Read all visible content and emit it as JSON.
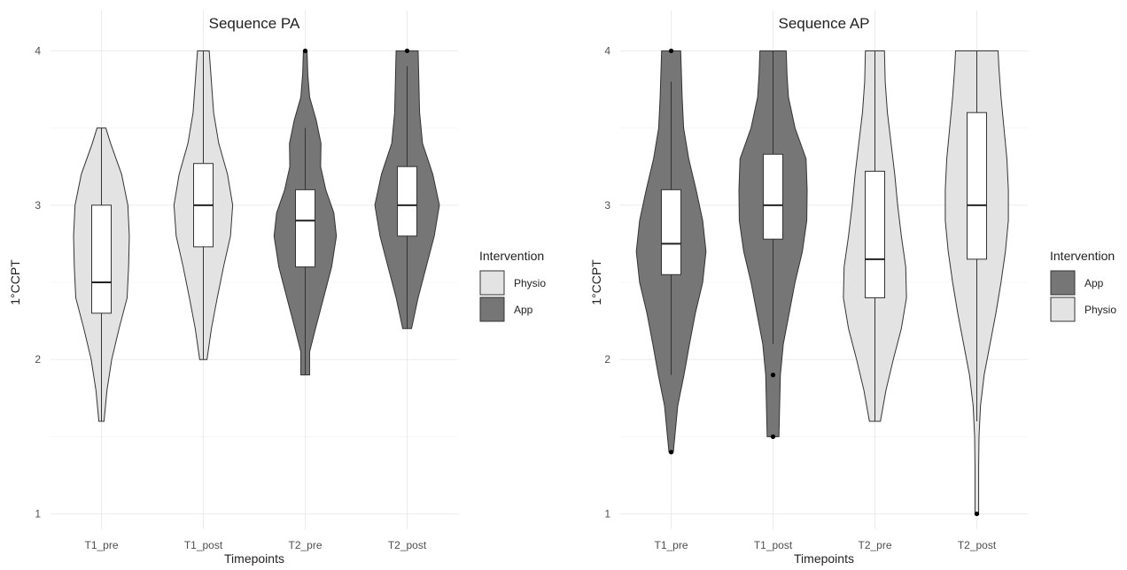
{
  "chart_data": [
    {
      "type": "violin",
      "title": "Sequence PA",
      "xlabel": "Timepoints",
      "ylabel": "1°CCPT",
      "ylim": [
        0.9,
        4.1
      ],
      "yticks": [
        1,
        2,
        3,
        4
      ],
      "grid": true,
      "legend": {
        "title": "Intervention",
        "position": "right",
        "entries": [
          {
            "name": "Physio",
            "color": "#e3e3e3"
          },
          {
            "name": "App",
            "color": "#767676"
          }
        ]
      },
      "categories": [
        "T1_pre",
        "T1_post",
        "T2_pre",
        "T2_post"
      ],
      "groups": [
        {
          "category": "T1_pre",
          "intervention": "Physio",
          "box": {
            "q1": 2.3,
            "median": 2.5,
            "q3": 3.0,
            "whisker_low": 1.6,
            "whisker_high": 3.5
          },
          "outliers": [],
          "density": [
            [
              1.6,
              0.07
            ],
            [
              1.8,
              0.15
            ],
            [
              2.0,
              0.28
            ],
            [
              2.2,
              0.48
            ],
            [
              2.4,
              0.7
            ],
            [
              2.6,
              0.74
            ],
            [
              2.8,
              0.76
            ],
            [
              3.0,
              0.72
            ],
            [
              3.2,
              0.55
            ],
            [
              3.4,
              0.25
            ],
            [
              3.5,
              0.12
            ]
          ]
        },
        {
          "category": "T1_post",
          "intervention": "Physio",
          "box": {
            "q1": 2.73,
            "median": 3.0,
            "q3": 3.27,
            "whisker_low": 2.0,
            "whisker_high": 4.0
          },
          "outliers": [],
          "density": [
            [
              2.0,
              0.1
            ],
            [
              2.2,
              0.22
            ],
            [
              2.4,
              0.38
            ],
            [
              2.6,
              0.55
            ],
            [
              2.8,
              0.74
            ],
            [
              3.0,
              0.8
            ],
            [
              3.2,
              0.66
            ],
            [
              3.4,
              0.42
            ],
            [
              3.6,
              0.28
            ],
            [
              3.8,
              0.22
            ],
            [
              4.0,
              0.16
            ]
          ]
        },
        {
          "category": "T2_pre",
          "intervention": "App",
          "box": {
            "q1": 2.6,
            "median": 2.9,
            "q3": 3.1,
            "whisker_low": 1.9,
            "whisker_high": 3.5
          },
          "outliers": [
            4.0
          ],
          "density": [
            [
              1.9,
              0.12
            ],
            [
              2.05,
              0.12
            ],
            [
              2.2,
              0.28
            ],
            [
              2.4,
              0.5
            ],
            [
              2.6,
              0.72
            ],
            [
              2.8,
              0.85
            ],
            [
              2.95,
              0.78
            ],
            [
              3.1,
              0.56
            ],
            [
              3.25,
              0.42
            ],
            [
              3.4,
              0.43
            ],
            [
              3.55,
              0.3
            ],
            [
              3.7,
              0.12
            ],
            [
              3.85,
              0.07
            ],
            [
              4.0,
              0.05
            ]
          ]
        },
        {
          "category": "T2_post",
          "intervention": "App",
          "box": {
            "q1": 2.8,
            "median": 3.0,
            "q3": 3.25,
            "whisker_low": 2.2,
            "whisker_high": 3.9
          },
          "outliers": [
            4.0
          ],
          "density": [
            [
              2.2,
              0.12
            ],
            [
              2.4,
              0.3
            ],
            [
              2.6,
              0.52
            ],
            [
              2.8,
              0.74
            ],
            [
              3.0,
              0.88
            ],
            [
              3.2,
              0.7
            ],
            [
              3.4,
              0.42
            ],
            [
              3.6,
              0.34
            ],
            [
              3.8,
              0.32
            ],
            [
              4.0,
              0.3
            ]
          ]
        }
      ]
    },
    {
      "type": "violin",
      "title": "Sequence AP",
      "xlabel": "Timepoints",
      "ylabel": "1°CCPT",
      "ylim": [
        0.9,
        4.1
      ],
      "yticks": [
        1,
        2,
        3,
        4
      ],
      "grid": true,
      "legend": {
        "title": "Intervention",
        "position": "right",
        "entries": [
          {
            "name": "App",
            "color": "#767676"
          },
          {
            "name": "Physio",
            "color": "#e3e3e3"
          }
        ]
      },
      "categories": [
        "T1_pre",
        "T1_post",
        "T2_pre",
        "T2_post"
      ],
      "groups": [
        {
          "category": "T1_pre",
          "intervention": "App",
          "box": {
            "q1": 2.55,
            "median": 2.75,
            "q3": 3.1,
            "whisker_low": 1.9,
            "whisker_high": 3.8
          },
          "outliers": [
            1.4,
            4.0
          ],
          "density": [
            [
              1.4,
              0.06
            ],
            [
              1.5,
              0.1
            ],
            [
              1.7,
              0.18
            ],
            [
              1.9,
              0.35
            ],
            [
              2.1,
              0.5
            ],
            [
              2.3,
              0.66
            ],
            [
              2.5,
              0.86
            ],
            [
              2.7,
              0.95
            ],
            [
              2.9,
              0.86
            ],
            [
              3.1,
              0.68
            ],
            [
              3.3,
              0.48
            ],
            [
              3.5,
              0.34
            ],
            [
              3.7,
              0.3
            ],
            [
              3.85,
              0.28
            ],
            [
              4.0,
              0.26
            ]
          ]
        },
        {
          "category": "T1_post",
          "intervention": "App",
          "box": {
            "q1": 2.78,
            "median": 3.0,
            "q3": 3.33,
            "whisker_low": 2.1,
            "whisker_high": 4.0
          },
          "outliers": [
            1.5,
            1.9
          ],
          "density": [
            [
              1.5,
              0.16
            ],
            [
              1.7,
              0.18
            ],
            [
              1.9,
              0.2
            ],
            [
              2.1,
              0.28
            ],
            [
              2.3,
              0.44
            ],
            [
              2.5,
              0.6
            ],
            [
              2.7,
              0.8
            ],
            [
              2.9,
              0.92
            ],
            [
              3.1,
              0.93
            ],
            [
              3.3,
              0.9
            ],
            [
              3.5,
              0.6
            ],
            [
              3.7,
              0.42
            ],
            [
              3.85,
              0.38
            ],
            [
              4.0,
              0.36
            ]
          ]
        },
        {
          "category": "T2_pre",
          "intervention": "Physio",
          "box": {
            "q1": 2.4,
            "median": 2.65,
            "q3": 3.22,
            "whisker_low": 1.6,
            "whisker_high": 4.0
          },
          "outliers": [],
          "density": [
            [
              1.6,
              0.15
            ],
            [
              1.8,
              0.3
            ],
            [
              2.0,
              0.5
            ],
            [
              2.2,
              0.72
            ],
            [
              2.4,
              0.86
            ],
            [
              2.6,
              0.84
            ],
            [
              2.8,
              0.72
            ],
            [
              3.0,
              0.62
            ],
            [
              3.2,
              0.54
            ],
            [
              3.4,
              0.44
            ],
            [
              3.6,
              0.34
            ],
            [
              3.8,
              0.28
            ],
            [
              4.0,
              0.26
            ]
          ]
        },
        {
          "category": "T2_post",
          "intervention": "Physio",
          "box": {
            "q1": 2.65,
            "median": 3.0,
            "q3": 3.6,
            "whisker_low": 1.6,
            "whisker_high": 4.0
          },
          "outliers": [
            1.0
          ],
          "density": [
            [
              1.0,
              0.05
            ],
            [
              1.1,
              0.05
            ],
            [
              1.3,
              0.05
            ],
            [
              1.5,
              0.06
            ],
            [
              1.7,
              0.1
            ],
            [
              1.9,
              0.2
            ],
            [
              2.1,
              0.36
            ],
            [
              2.3,
              0.52
            ],
            [
              2.5,
              0.66
            ],
            [
              2.7,
              0.78
            ],
            [
              2.9,
              0.86
            ],
            [
              3.1,
              0.86
            ],
            [
              3.3,
              0.82
            ],
            [
              3.5,
              0.74
            ],
            [
              3.7,
              0.66
            ],
            [
              3.9,
              0.6
            ],
            [
              4.0,
              0.58
            ]
          ]
        }
      ]
    }
  ]
}
